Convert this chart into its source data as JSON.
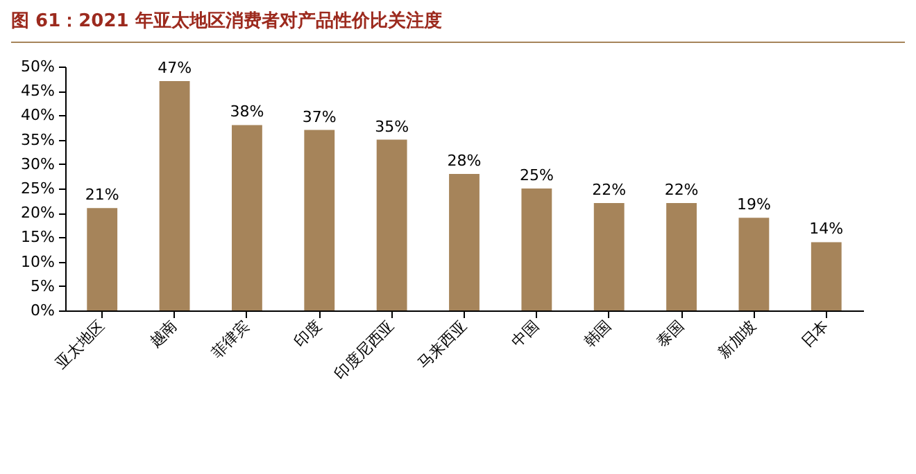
{
  "chart_data": {
    "type": "bar",
    "title": "图 61：2021 年亚太地区消费者对产品性价比关注度",
    "categories": [
      "亚太地区",
      "越南",
      "菲律宾",
      "印度",
      "印度尼西亚",
      "马来西亚",
      "中国",
      "韩国",
      "泰国",
      "新加坡",
      "日本"
    ],
    "values": [
      21,
      47,
      38,
      37,
      35,
      28,
      25,
      22,
      22,
      19,
      14
    ],
    "value_labels": [
      "21%",
      "47%",
      "38%",
      "37%",
      "35%",
      "28%",
      "25%",
      "22%",
      "22%",
      "19%",
      "14%"
    ],
    "color": "#a6845a",
    "ylim": [
      0,
      50
    ],
    "yticks": [
      {
        "value": 0,
        "label": "0%"
      },
      {
        "value": 5,
        "label": "5%"
      },
      {
        "value": 10,
        "label": "10%"
      },
      {
        "value": 15,
        "label": "15%"
      },
      {
        "value": 20,
        "label": "20%"
      },
      {
        "value": 25,
        "label": "25%"
      },
      {
        "value": 30,
        "label": "30%"
      },
      {
        "value": 35,
        "label": "35%"
      },
      {
        "value": 40,
        "label": "40%"
      },
      {
        "value": 45,
        "label": "45%"
      },
      {
        "value": 50,
        "label": "50%"
      }
    ],
    "grid": false
  }
}
